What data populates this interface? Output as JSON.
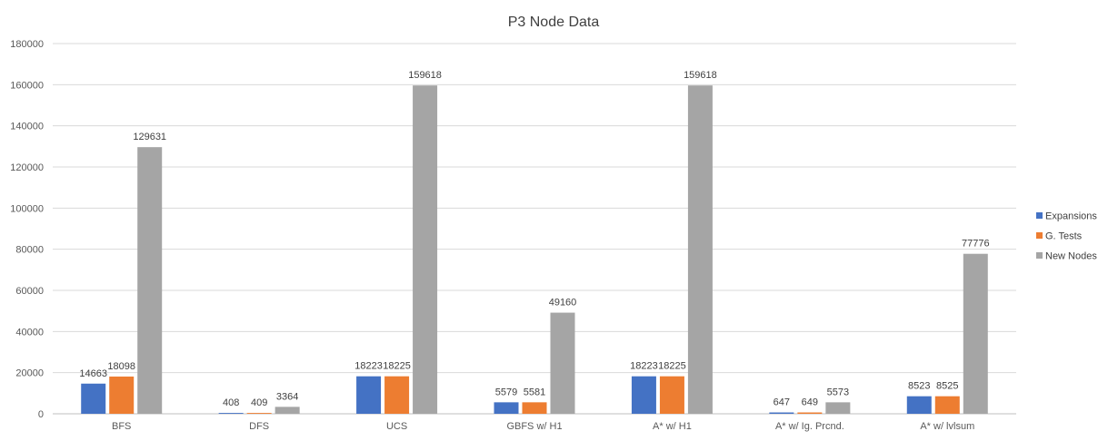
{
  "chart_data": {
    "type": "bar",
    "title": "P3 Node Data",
    "xlabel": "",
    "ylabel": "",
    "ylim": [
      0,
      180000
    ],
    "yticks": [
      0,
      20000,
      40000,
      60000,
      80000,
      100000,
      120000,
      140000,
      160000,
      180000
    ],
    "grid": true,
    "legend_position": "right",
    "categories": [
      "BFS",
      "DFS",
      "UCS",
      "GBFS w/ H1",
      "A* w/ H1",
      "A* w/ Ig. Prcnd.",
      "A* w/ lvlsum"
    ],
    "series": [
      {
        "name": "Expansions",
        "color": "#4472c4",
        "values": [
          14663,
          408,
          18223,
          5579,
          18223,
          647,
          8523
        ]
      },
      {
        "name": "G. Tests",
        "color": "#ed7d31",
        "values": [
          18098,
          409,
          18225,
          5581,
          18225,
          649,
          8525
        ]
      },
      {
        "name": "New Nodes",
        "color": "#a5a5a5",
        "values": [
          129631,
          3364,
          159618,
          49160,
          159618,
          5573,
          77776
        ]
      }
    ]
  }
}
